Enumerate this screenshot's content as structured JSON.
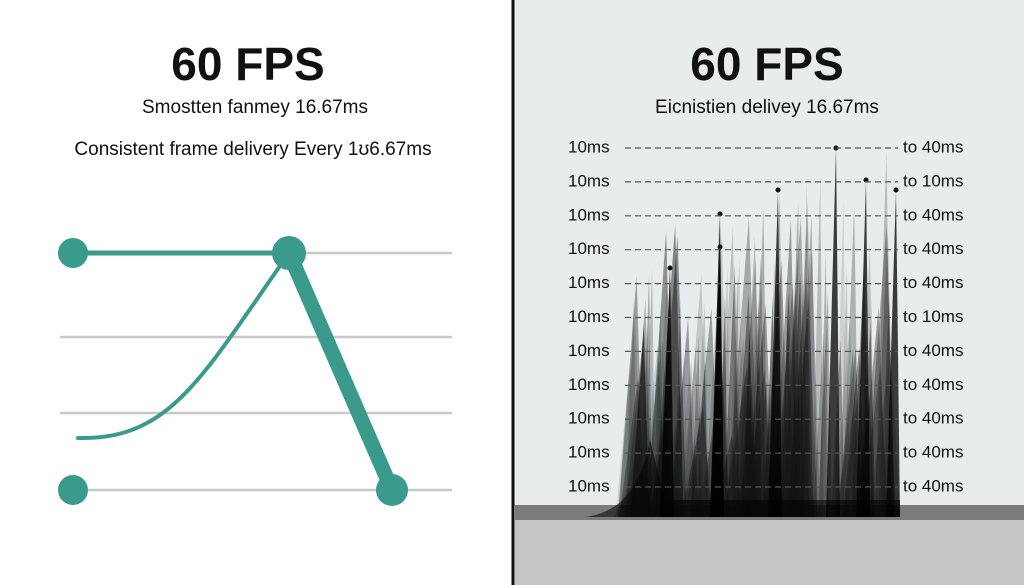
{
  "left_panel": {
    "title": "60 FPS",
    "subtitle": "Smostten fanmey 16.67ms",
    "caption": "Consistent frame delivery Every 1ʊ6.67ms"
  },
  "right_panel": {
    "title": "60 FPS",
    "subtitle": "Eicnistien delivey 16.67ms",
    "row_labels_left": [
      "10ms",
      "10ms",
      "10ms",
      "10ms",
      "10ms",
      "10ms",
      "10ms",
      "10ms",
      "10ms",
      "10ms",
      "10ms"
    ],
    "row_labels_right": [
      "to 40ms",
      "to 10ms",
      "to 40ms",
      "to 40ms",
      "to 40ms",
      "to 10ms",
      "to 40ms",
      "to 40ms",
      "to 40ms",
      "to 40ms",
      "to 40ms"
    ]
  }
}
